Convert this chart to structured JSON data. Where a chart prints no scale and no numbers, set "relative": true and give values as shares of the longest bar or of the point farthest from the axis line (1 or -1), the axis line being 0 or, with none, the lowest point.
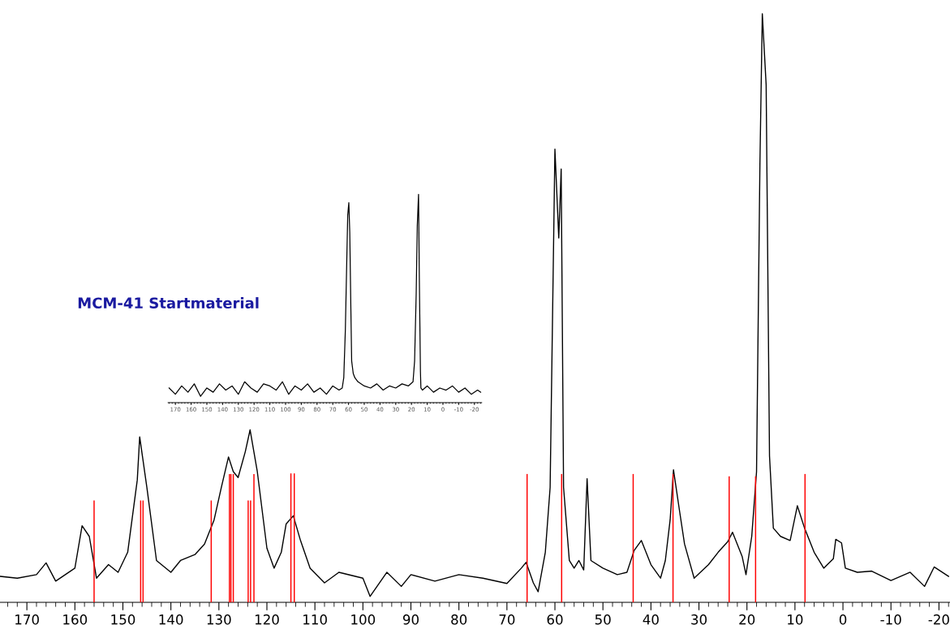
{
  "chart_data": [
    {
      "type": "line",
      "relative": true,
      "xlim": [
        175.6,
        -22.3
      ],
      "xticks": [
        170,
        160,
        150,
        140,
        130,
        120,
        110,
        100,
        90,
        80,
        70,
        60,
        50,
        40,
        30,
        20,
        10,
        0,
        -10,
        -20
      ],
      "tick_labels": "x",
      "grid": false,
      "legend": false,
      "marker": "none",
      "line_style": "solid",
      "series": [
        {
          "color": "#000000",
          "x": [
            175.5,
            172,
            168,
            166,
            164,
            160,
            158.5,
            157,
            155.5,
            153,
            151,
            149,
            147,
            146.5,
            145,
            143,
            140,
            138,
            135,
            133,
            131,
            129.5,
            128,
            127,
            126,
            124.5,
            123.5,
            122,
            120,
            118.5,
            117,
            116,
            114.5,
            113,
            111,
            108,
            105,
            100,
            98.5,
            95,
            92,
            90,
            85,
            80,
            75,
            70,
            67,
            66,
            64.5,
            63.5,
            62,
            61,
            60,
            59.2,
            58.7,
            58.2,
            57,
            56,
            55,
            54,
            53.3,
            52.5,
            50,
            47,
            45,
            43.5,
            42,
            40,
            38,
            37,
            36,
            35.3,
            34,
            33,
            31,
            28,
            26,
            24,
            23,
            21,
            20.2,
            19,
            18,
            17.3,
            16.8,
            16,
            15.3,
            14.5,
            13,
            11,
            9.5,
            8,
            6,
            4,
            2,
            1.5,
            0.3,
            -0.5,
            -3,
            -6,
            -10,
            -14,
            -17,
            -19,
            -22
          ],
          "values": [
            0.044,
            0.041,
            0.047,
            0.067,
            0.036,
            0.058,
            0.13,
            0.112,
            0.041,
            0.064,
            0.051,
            0.085,
            0.208,
            0.281,
            0.195,
            0.071,
            0.051,
            0.071,
            0.081,
            0.099,
            0.14,
            0.195,
            0.247,
            0.222,
            0.212,
            0.256,
            0.293,
            0.222,
            0.092,
            0.058,
            0.085,
            0.133,
            0.147,
            0.105,
            0.058,
            0.033,
            0.051,
            0.041,
            0.01,
            0.051,
            0.027,
            0.047,
            0.036,
            0.047,
            0.041,
            0.032,
            0.058,
            0.068,
            0.033,
            0.018,
            0.085,
            0.195,
            0.77,
            0.619,
            0.736,
            0.195,
            0.071,
            0.058,
            0.071,
            0.055,
            0.21,
            0.071,
            0.058,
            0.047,
            0.051,
            0.088,
            0.105,
            0.064,
            0.041,
            0.071,
            0.14,
            0.225,
            0.153,
            0.099,
            0.041,
            0.064,
            0.085,
            0.103,
            0.119,
            0.078,
            0.047,
            0.112,
            0.222,
            0.742,
            1.0,
            0.879,
            0.249,
            0.126,
            0.112,
            0.105,
            0.164,
            0.126,
            0.085,
            0.058,
            0.074,
            0.107,
            0.101,
            0.058,
            0.051,
            0.053,
            0.037,
            0.051,
            0.027,
            0.06,
            0.044
          ]
        },
        {
          "type": "bar",
          "color": "#ff0000",
          "x": [
            156.0,
            146.3,
            145.8,
            131.6,
            127.8,
            127.5,
            127.0,
            123.9,
            123.4,
            122.7,
            115.0,
            114.3,
            65.8,
            58.6,
            43.7,
            35.4,
            23.7,
            18.2,
            7.9
          ],
          "values": [
            0.173,
            0.173,
            0.173,
            0.173,
            0.218,
            0.218,
            0.218,
            0.173,
            0.173,
            0.218,
            0.219,
            0.219,
            0.218,
            0.218,
            0.218,
            0.218,
            0.214,
            0.214,
            0.218
          ]
        }
      ]
    },
    {
      "type": "line",
      "relative": true,
      "title": "MCM-41 Startmaterial",
      "xlim": [
        174.6,
        -24.6
      ],
      "xticks": [
        170,
        160,
        150,
        140,
        130,
        120,
        110,
        100,
        90,
        80,
        70,
        60,
        50,
        40,
        30,
        20,
        10,
        0,
        -10,
        -20
      ],
      "tick_labels": "x",
      "grid": false,
      "legend": false,
      "marker": "none",
      "line_style": "solid",
      "series": [
        {
          "color": "#000000",
          "x": [
            174,
            170,
            166,
            162,
            158,
            154,
            150,
            146,
            142,
            138,
            134,
            130,
            126,
            122,
            118,
            114,
            110,
            106,
            102,
            98,
            94,
            90,
            86,
            82,
            78,
            74,
            70,
            66,
            64,
            63,
            62,
            61,
            60.5,
            59.8,
            59.2,
            58.5,
            58,
            57,
            56,
            54,
            50,
            46,
            42,
            38,
            34,
            30,
            26,
            22,
            19,
            18,
            17,
            16.3,
            15.5,
            15,
            14.3,
            14,
            13,
            10,
            6,
            2,
            -2,
            -6,
            -10,
            -14,
            -18,
            -22,
            -24
          ],
          "values": [
            0.07,
            0.04,
            0.08,
            0.05,
            0.09,
            0.03,
            0.07,
            0.05,
            0.09,
            0.06,
            0.08,
            0.04,
            0.1,
            0.07,
            0.05,
            0.09,
            0.08,
            0.06,
            0.1,
            0.04,
            0.08,
            0.06,
            0.09,
            0.05,
            0.07,
            0.04,
            0.08,
            0.06,
            0.07,
            0.12,
            0.35,
            0.72,
            0.9,
            0.96,
            0.82,
            0.45,
            0.2,
            0.14,
            0.12,
            0.1,
            0.08,
            0.07,
            0.09,
            0.06,
            0.08,
            0.07,
            0.09,
            0.08,
            0.1,
            0.2,
            0.52,
            0.85,
            1.0,
            0.6,
            0.15,
            0.07,
            0.06,
            0.08,
            0.05,
            0.07,
            0.06,
            0.08,
            0.05,
            0.07,
            0.04,
            0.06,
            0.05
          ]
        }
      ]
    }
  ]
}
